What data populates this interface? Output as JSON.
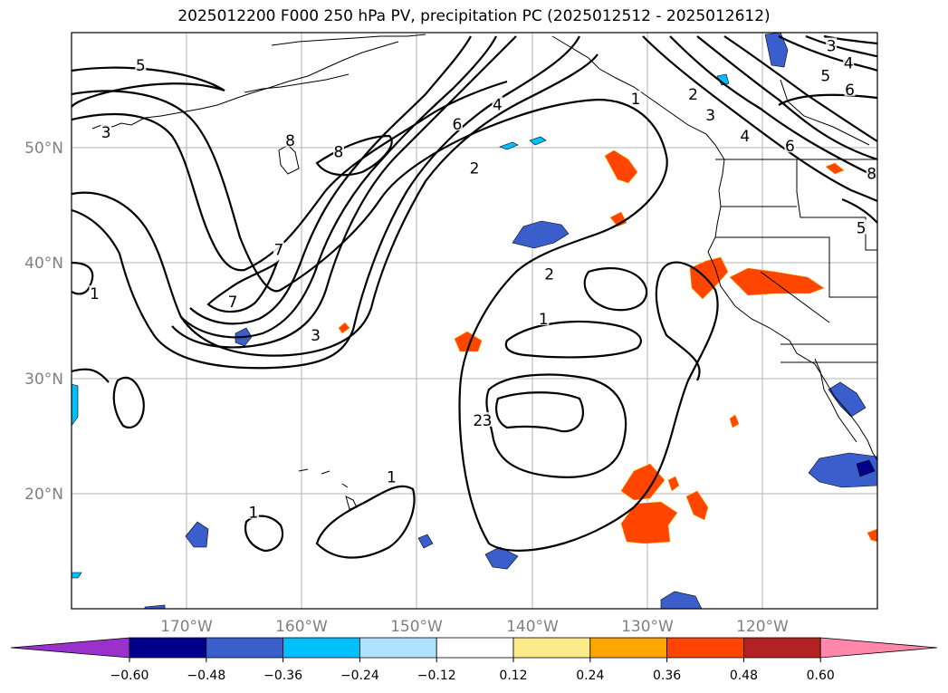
{
  "title": "2025012200 F000 250 hPa PV, precipitation PC (2025012512 - 2025012612)",
  "map": {
    "lon_labels": [
      "170°W",
      "160°W",
      "150°W",
      "140°W",
      "130°W",
      "120°W"
    ],
    "lat_labels": [
      "50°N",
      "40°N",
      "30°N",
      "20°N"
    ],
    "lon_range": [
      -180,
      -110
    ],
    "lat_range": [
      10,
      60
    ],
    "contour_labels": [
      {
        "text": "5",
        "lon": -174,
        "lat": 57
      },
      {
        "text": "3",
        "lon": -177,
        "lat": 51.2
      },
      {
        "text": "8",
        "lon": -161,
        "lat": 50.5
      },
      {
        "text": "8",
        "lon": -156.8,
        "lat": 49.5
      },
      {
        "text": "6",
        "lon": -146.5,
        "lat": 51.9
      },
      {
        "text": "4",
        "lon": -143,
        "lat": 53.6
      },
      {
        "text": "2",
        "lon": -145,
        "lat": 48.1
      },
      {
        "text": "1",
        "lon": -131,
        "lat": 54.1
      },
      {
        "text": "7",
        "lon": -162,
        "lat": 41
      },
      {
        "text": "7",
        "lon": -166,
        "lat": 36.5
      },
      {
        "text": "3",
        "lon": -158.8,
        "lat": 33.6
      },
      {
        "text": "1",
        "lon": -178,
        "lat": 37.2
      },
      {
        "text": "2",
        "lon": -138.5,
        "lat": 38.9
      },
      {
        "text": "1",
        "lon": -139,
        "lat": 35
      },
      {
        "text": "2",
        "lon": -144.7,
        "lat": 26.2
      },
      {
        "text": "3",
        "lon": -143.9,
        "lat": 26.2
      },
      {
        "text": "1",
        "lon": -152.2,
        "lat": 21.3
      },
      {
        "text": "1",
        "lon": -164.2,
        "lat": 18.2
      },
      {
        "text": "2",
        "lon": -126,
        "lat": 54.5
      },
      {
        "text": "3",
        "lon": -124.5,
        "lat": 52.7
      },
      {
        "text": "4",
        "lon": -121.5,
        "lat": 50.9
      },
      {
        "text": "6",
        "lon": -117.6,
        "lat": 50
      },
      {
        "text": "3",
        "lon": -114,
        "lat": 58.7
      },
      {
        "text": "4",
        "lon": -112.5,
        "lat": 57.2
      },
      {
        "text": "5",
        "lon": -114.5,
        "lat": 56.1
      },
      {
        "text": "6",
        "lon": -112.4,
        "lat": 54.9
      },
      {
        "text": "8",
        "lon": -110.5,
        "lat": 47.6
      },
      {
        "text": "5",
        "lon": -111.4,
        "lat": 42.9
      }
    ]
  },
  "colorbar": {
    "ticks": [
      "−0.60",
      "−0.48",
      "−0.36",
      "−0.24",
      "−0.12",
      "0.12",
      "0.24",
      "0.36",
      "0.48",
      "0.60"
    ],
    "colors": [
      "#9932cc",
      "#00008b",
      "#3a5fcd",
      "#00bfff",
      "#b0e2ff",
      "#ffffff",
      "#fdeb8a",
      "#ffa500",
      "#ff4500",
      "#b22222",
      "#ff88aa"
    ]
  }
}
